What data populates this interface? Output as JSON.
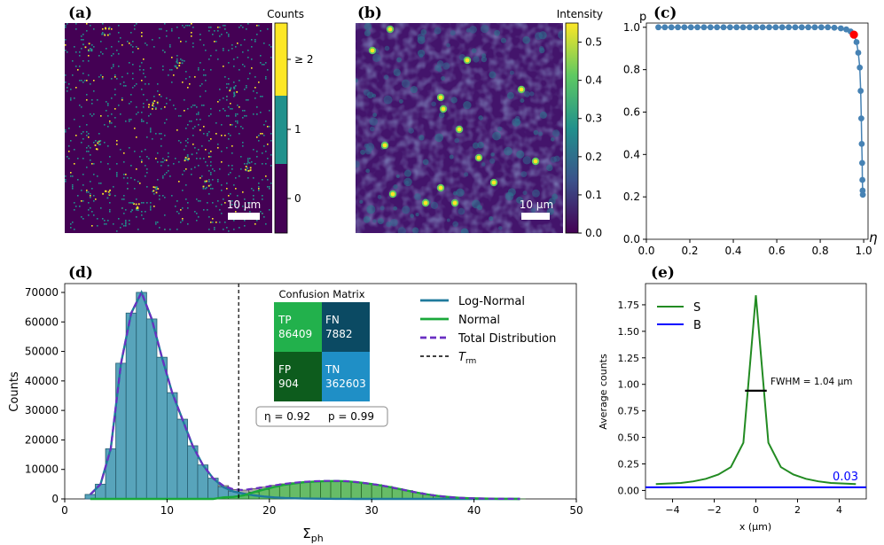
{
  "figure": {
    "panels": [
      "(a)",
      "(b)",
      "(c)",
      "(d)",
      "(e)"
    ]
  },
  "chart_data": [
    {
      "panel": "(a)",
      "type": "heatmap",
      "colorbar_label": "Counts",
      "colorbar_ticks": [
        "≥ 2",
        "1",
        "0"
      ],
      "scale_bar": "10 µm",
      "colors": [
        "#440154",
        "#21918c",
        "#fde725"
      ]
    },
    {
      "panel": "(b)",
      "type": "heatmap",
      "colorbar_label": "Intensity",
      "colorbar_ticks": [
        "0.5",
        "0.4",
        "0.3",
        "0.2",
        "0.1",
        "0.0"
      ],
      "colorbar_range": [
        0.0,
        0.55
      ],
      "scale_bar": "10 µm"
    },
    {
      "panel": "(c)",
      "type": "line",
      "xlabel": "η",
      "ylabel": "p",
      "xlim": [
        0.0,
        1.02
      ],
      "ylim": [
        0.0,
        1.02
      ],
      "xticks": [
        "0.0",
        "0.2",
        "0.4",
        "0.6",
        "0.8",
        "1.0"
      ],
      "yticks": [
        "0.0",
        "0.2",
        "0.4",
        "0.6",
        "0.8",
        "1.0"
      ],
      "x": [
        0.055,
        0.085,
        0.115,
        0.145,
        0.175,
        0.205,
        0.235,
        0.265,
        0.295,
        0.325,
        0.355,
        0.385,
        0.415,
        0.445,
        0.475,
        0.505,
        0.535,
        0.565,
        0.595,
        0.625,
        0.655,
        0.685,
        0.715,
        0.745,
        0.775,
        0.805,
        0.835,
        0.865,
        0.895,
        0.92,
        0.94,
        0.955,
        0.967,
        0.975,
        0.982,
        0.986,
        0.989,
        0.991,
        0.993,
        0.994,
        0.995,
        0.996
      ],
      "y": [
        1.0,
        1.0,
        1.0,
        1.0,
        1.0,
        1.0,
        1.0,
        1.0,
        1.0,
        1.0,
        1.0,
        1.0,
        1.0,
        1.0,
        1.0,
        1.0,
        1.0,
        1.0,
        1.0,
        1.0,
        1.0,
        1.0,
        1.0,
        1.0,
        1.0,
        1.0,
        1.0,
        0.998,
        0.995,
        0.99,
        0.98,
        0.965,
        0.93,
        0.88,
        0.81,
        0.7,
        0.57,
        0.45,
        0.36,
        0.28,
        0.23,
        0.21
      ],
      "highlight": {
        "x": 0.955,
        "y": 0.965,
        "color": "#ff0000"
      },
      "line_color": "#4682b4"
    },
    {
      "panel": "(d)",
      "type": "bar",
      "xlabel": "Σ",
      "xlabel_sub": "ph",
      "ylabel": "Counts",
      "xlim": [
        0,
        50
      ],
      "ylim": [
        0,
        73000
      ],
      "xticks": [
        "0",
        "10",
        "20",
        "30",
        "40",
        "50"
      ],
      "yticks": [
        "0",
        "10000",
        "20000",
        "30000",
        "40000",
        "50000",
        "60000",
        "70000"
      ],
      "bin_width": 1,
      "bin_starts": [
        2,
        3,
        4,
        5,
        6,
        7,
        8,
        9,
        10,
        11,
        12,
        13,
        14,
        15,
        16,
        17,
        18,
        19,
        20,
        21,
        22,
        23,
        24,
        25,
        26,
        27,
        28,
        29,
        30,
        31,
        32,
        33,
        34,
        35,
        36,
        37,
        38,
        39,
        40,
        41,
        42,
        43,
        44
      ],
      "total_counts": [
        1500,
        5000,
        17000,
        46000,
        63000,
        70000,
        61000,
        48000,
        36000,
        27000,
        18000,
        11500,
        7000,
        4500,
        3200,
        3000,
        3500,
        4000,
        4600,
        5100,
        5500,
        5800,
        6000,
        6100,
        6100,
        6000,
        5700,
        5300,
        4800,
        4200,
        3500,
        2800,
        2100,
        1500,
        1000,
        650,
        400,
        250,
        150,
        80,
        40,
        20,
        10
      ],
      "log_normal_counts": [
        1500,
        5000,
        17000,
        46000,
        63000,
        70000,
        61000,
        48000,
        36000,
        27000,
        18000,
        11500,
        7000,
        4000,
        2500,
        1800,
        1200,
        800,
        500,
        300,
        200,
        120,
        80,
        50,
        30,
        20,
        10,
        0,
        0,
        0,
        0,
        0,
        0,
        0,
        0,
        0,
        0,
        0,
        0,
        0,
        0,
        0,
        0
      ],
      "normal_counts": [
        0,
        0,
        0,
        0,
        0,
        0,
        0,
        0,
        0,
        0,
        0,
        0,
        0,
        500,
        700,
        1200,
        2300,
        3200,
        4100,
        4800,
        5300,
        5700,
        5900,
        6050,
        6070,
        5980,
        5690,
        5300,
        4800,
        4200,
        3500,
        2800,
        2100,
        1500,
        1000,
        650,
        400,
        250,
        150,
        80,
        40,
        20,
        10
      ],
      "threshold": {
        "x": 17,
        "label": "T",
        "label_sub": "rm"
      },
      "series": [
        {
          "name": "Log-Normal",
          "color": "#1f7a9c"
        },
        {
          "name": "Normal",
          "color": "#1aa83a"
        },
        {
          "name": "Total Distribution",
          "color": "#6a2fc2"
        },
        {
          "name": "T_rm",
          "color": "#000000"
        }
      ],
      "legend_labels": {
        "log_normal": "Log-Normal",
        "normal": "Normal",
        "total": "Total Distribution",
        "threshold_prefix": "T",
        "threshold_sub": "rm"
      },
      "confusion_matrix": {
        "title": "Confusion Matrix",
        "tp_label": "TP",
        "tp_value": "86409",
        "fn_label": "FN",
        "fn_value": "7882",
        "fp_label": "FP",
        "fp_value": "904",
        "tn_label": "TN",
        "tn_value": "362603",
        "colors": {
          "tp": "#22b14c",
          "fn": "#0b4a63",
          "fp": "#0d5c1d",
          "tn": "#1f8fc6"
        }
      },
      "metrics_box": {
        "eta_label": "η = 0.92",
        "p_label": "p = 0.99"
      }
    },
    {
      "panel": "(e)",
      "type": "line",
      "xlabel": "x (µm)",
      "ylabel": "Average counts",
      "xlim": [
        -5.3,
        5.3
      ],
      "ylim": [
        -0.08,
        1.95
      ],
      "xticks": [
        "−4",
        "−2",
        "0",
        "2",
        "4"
      ],
      "yticks": [
        "0.00",
        "0.25",
        "0.50",
        "0.75",
        "1.00",
        "1.25",
        "1.50",
        "1.75"
      ],
      "series": [
        {
          "name": "S",
          "color": "#228b22",
          "x": [
            -4.8,
            -4.2,
            -3.6,
            -3.0,
            -2.4,
            -1.8,
            -1.2,
            -0.6,
            0.0,
            0.6,
            1.2,
            1.8,
            2.4,
            3.0,
            3.6,
            4.2,
            4.8
          ],
          "y": [
            0.06,
            0.065,
            0.07,
            0.085,
            0.11,
            0.15,
            0.22,
            0.45,
            1.84,
            0.45,
            0.22,
            0.15,
            0.11,
            0.085,
            0.07,
            0.065,
            0.06
          ]
        },
        {
          "name": "B",
          "color": "#0000ff",
          "value": 0.03
        }
      ],
      "fwhm": {
        "label": "FWHM = 1.04 µm",
        "value": 1.04,
        "y": 0.94
      },
      "b_value_label": "0.03"
    }
  ]
}
